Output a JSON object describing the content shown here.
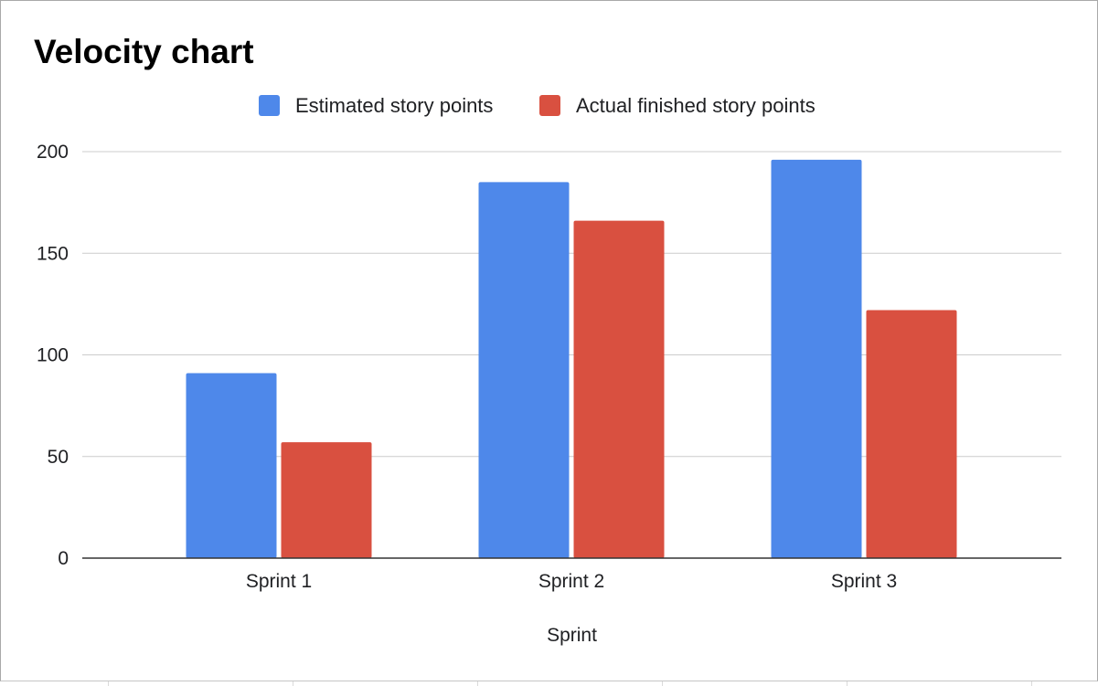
{
  "chart_data": {
    "type": "bar",
    "title": "Velocity chart",
    "categories": [
      "Sprint 1",
      "Sprint 2",
      "Sprint 3"
    ],
    "series": [
      {
        "name": "Estimated story points",
        "values": [
          91,
          185,
          196
        ],
        "color": "#4e88ea"
      },
      {
        "name": "Actual finished story points",
        "values": [
          57,
          166,
          122
        ],
        "color": "#d95040"
      }
    ],
    "xlabel": "Sprint",
    "ylabel": "",
    "ylim": [
      0,
      200
    ],
    "yticks": [
      "0",
      "50",
      "100",
      "150",
      "200"
    ],
    "grid": true,
    "legend_position": "top"
  }
}
